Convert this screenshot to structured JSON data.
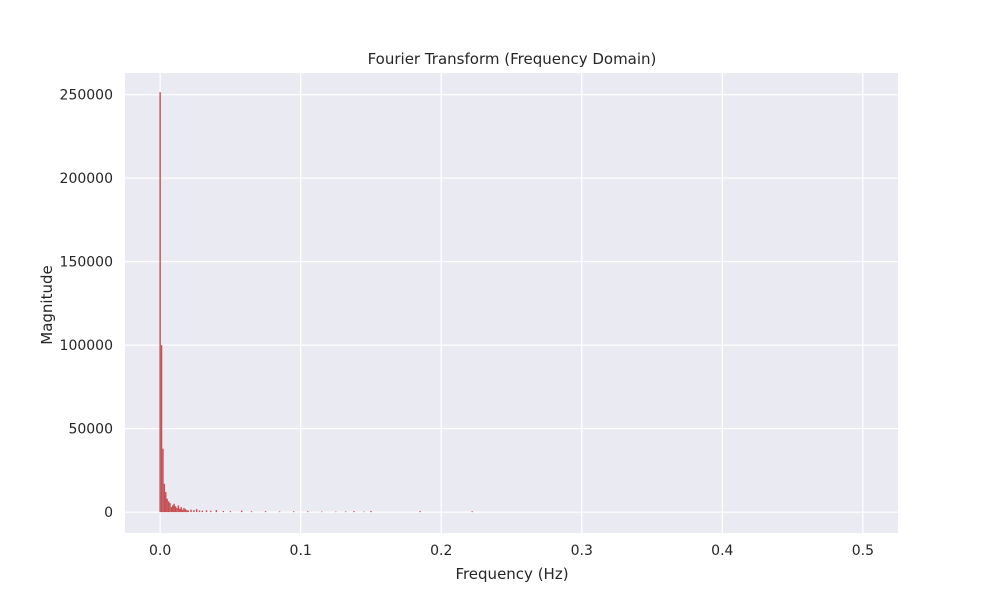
{
  "chart_data": {
    "type": "bar",
    "title": "Fourier Transform (Frequency Domain)",
    "xlabel": "Frequency (Hz)",
    "ylabel": "Magnitude",
    "xlim": [
      -0.025,
      0.525
    ],
    "ylim": [
      -12500,
      263000
    ],
    "xticks": [
      0.0,
      0.1,
      0.2,
      0.3,
      0.4,
      0.5
    ],
    "xtick_labels": [
      "0.0",
      "0.1",
      "0.2",
      "0.3",
      "0.4",
      "0.5"
    ],
    "yticks": [
      0,
      50000,
      100000,
      150000,
      200000,
      250000
    ],
    "ytick_labels": [
      "0",
      "50000",
      "100000",
      "150000",
      "200000",
      "250000"
    ],
    "grid": true,
    "background": "#eaeaf2",
    "grid_color": "#ffffff",
    "bar_color": "#c44e52",
    "bar_width": 0.001,
    "x": [
      0.0,
      0.001,
      0.002,
      0.003,
      0.004,
      0.005,
      0.006,
      0.007,
      0.008,
      0.009,
      0.01,
      0.011,
      0.012,
      0.013,
      0.014,
      0.015,
      0.016,
      0.017,
      0.018,
      0.019,
      0.02,
      0.022,
      0.024,
      0.026,
      0.028,
      0.03,
      0.033,
      0.036,
      0.04,
      0.045,
      0.05,
      0.058,
      0.065,
      0.075,
      0.085,
      0.095,
      0.105,
      0.115,
      0.125,
      0.132,
      0.138,
      0.145,
      0.15,
      0.185,
      0.222
    ],
    "values": [
      251500,
      100000,
      38000,
      17000,
      12000,
      8000,
      6500,
      5500,
      3000,
      4000,
      5000,
      3500,
      2500,
      4000,
      2000,
      3000,
      1500,
      2500,
      1800,
      1200,
      1000,
      1500,
      1200,
      1800,
      1000,
      900,
      1100,
      800,
      1200,
      700,
      600,
      900,
      500,
      600,
      400,
      500,
      450,
      350,
      300,
      400,
      600,
      300,
      700,
      600,
      500
    ]
  }
}
